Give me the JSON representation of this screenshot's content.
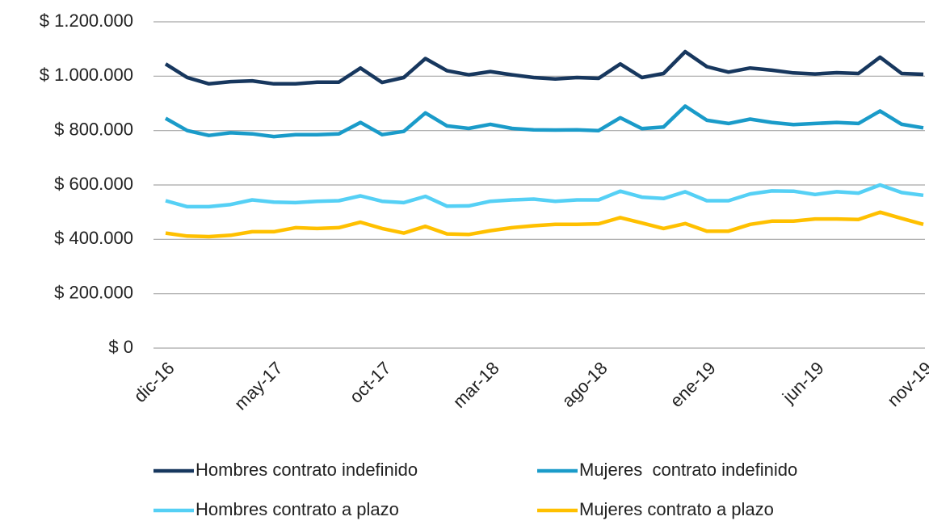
{
  "chart_data": {
    "type": "line",
    "categories": [
      "dic-16",
      null,
      null,
      null,
      null,
      "may-17",
      null,
      null,
      null,
      null,
      "oct-17",
      null,
      null,
      null,
      null,
      "mar-18",
      null,
      null,
      null,
      null,
      "ago-18",
      null,
      null,
      null,
      null,
      "ene-19",
      null,
      null,
      null,
      null,
      "jun-19",
      null,
      null,
      null,
      null,
      "nov-19"
    ],
    "ylim": [
      0,
      1200000
    ],
    "yticks": [
      {
        "value": 0,
        "label": "$ 0"
      },
      {
        "value": 200000,
        "label": "$ 200.000"
      },
      {
        "value": 400000,
        "label": "$ 400.000"
      },
      {
        "value": 600000,
        "label": "$ 600.000"
      },
      {
        "value": 800000,
        "label": "$ 800.000"
      },
      {
        "value": 1000000,
        "label": "$ 1.000.000"
      },
      {
        "value": 1200000,
        "label": "$ 1.200.000"
      }
    ],
    "grid": true,
    "legend": "bottom",
    "series": [
      {
        "name": "Hombres contrato indefinido",
        "color": "#17375e",
        "values": [
          1045000,
          995000,
          972000,
          980000,
          983000,
          972000,
          972000,
          978000,
          978000,
          1030000,
          977000,
          995000,
          1065000,
          1020000,
          1005000,
          1017000,
          1005000,
          995000,
          990000,
          995000,
          992000,
          1045000,
          995000,
          1010000,
          1090000,
          1035000,
          1015000,
          1030000,
          1022000,
          1012000,
          1008000,
          1013000,
          1010000,
          1070000,
          1010000,
          1007000
        ]
      },
      {
        "name": "Mujeres  contrato indefinido",
        "color": "#1a9bc9",
        "values": [
          845000,
          800000,
          782000,
          792000,
          788000,
          778000,
          785000,
          785000,
          788000,
          830000,
          785000,
          797000,
          865000,
          817000,
          808000,
          823000,
          808000,
          803000,
          802000,
          803000,
          800000,
          847000,
          807000,
          813000,
          890000,
          838000,
          826000,
          842000,
          830000,
          822000,
          826000,
          830000,
          826000,
          872000,
          823000,
          810000
        ]
      },
      {
        "name": "Hombres contrato a plazo",
        "color": "#55d0f5",
        "values": [
          542000,
          520000,
          520000,
          528000,
          545000,
          537000,
          535000,
          540000,
          542000,
          560000,
          540000,
          535000,
          558000,
          522000,
          523000,
          540000,
          545000,
          548000,
          540000,
          545000,
          545000,
          577000,
          555000,
          550000,
          575000,
          542000,
          542000,
          567000,
          578000,
          577000,
          565000,
          575000,
          570000,
          600000,
          572000,
          562000
        ]
      },
      {
        "name": "Mujeres contrato a plazo",
        "color": "#ffc000",
        "values": [
          423000,
          412000,
          410000,
          415000,
          428000,
          428000,
          443000,
          440000,
          443000,
          463000,
          440000,
          423000,
          448000,
          420000,
          418000,
          432000,
          443000,
          450000,
          455000,
          455000,
          457000,
          480000,
          460000,
          440000,
          458000,
          430000,
          430000,
          455000,
          467000,
          467000,
          475000,
          475000,
          473000,
          500000,
          477000,
          455000
        ]
      }
    ]
  }
}
